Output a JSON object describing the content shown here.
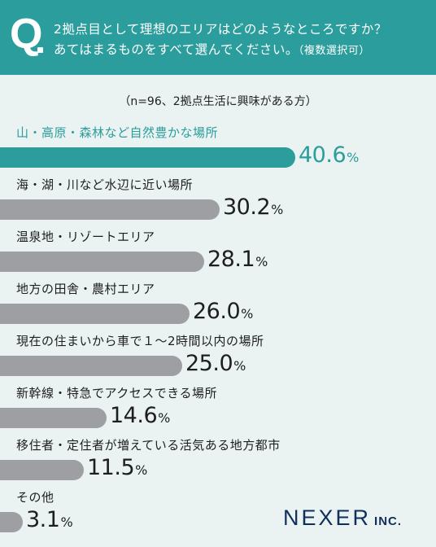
{
  "question": {
    "letter": "Q",
    "line1": "2拠点目として理想のエリアはどのようなところですか？",
    "line2": "あてはまるものをすべて選んでください。",
    "note": "（複数選択可）"
  },
  "sample": "（n=96、2拠点生活に興味がある方）",
  "logo": {
    "main": "NEXER",
    "sub": "INC."
  },
  "colors": {
    "accent": "#2a9d9c",
    "bar": "#9d9fa3",
    "logo": "#0f2f5c"
  },
  "chart_data": {
    "type": "bar",
    "orientation": "horizontal",
    "unit": "%",
    "categories": [
      "山・高原・森林など自然豊かな場所",
      "海・湖・川など水辺に近い場所",
      "温泉地・リゾートエリア",
      "地方の田舎・農村エリア",
      "現在の住まいから車で１～2時間以内の場所",
      "新幹線・特急でアクセスできる場所",
      "移住者・定住者が増えている活気ある地方都市",
      "その他"
    ],
    "values": [
      40.6,
      30.2,
      28.1,
      26.0,
      25.0,
      14.6,
      11.5,
      3.1
    ],
    "labels": [
      "40.6",
      "30.2",
      "28.1",
      "26.0",
      "25.0",
      "14.6",
      "11.5",
      "3.1"
    ],
    "highlight_index": 0
  }
}
